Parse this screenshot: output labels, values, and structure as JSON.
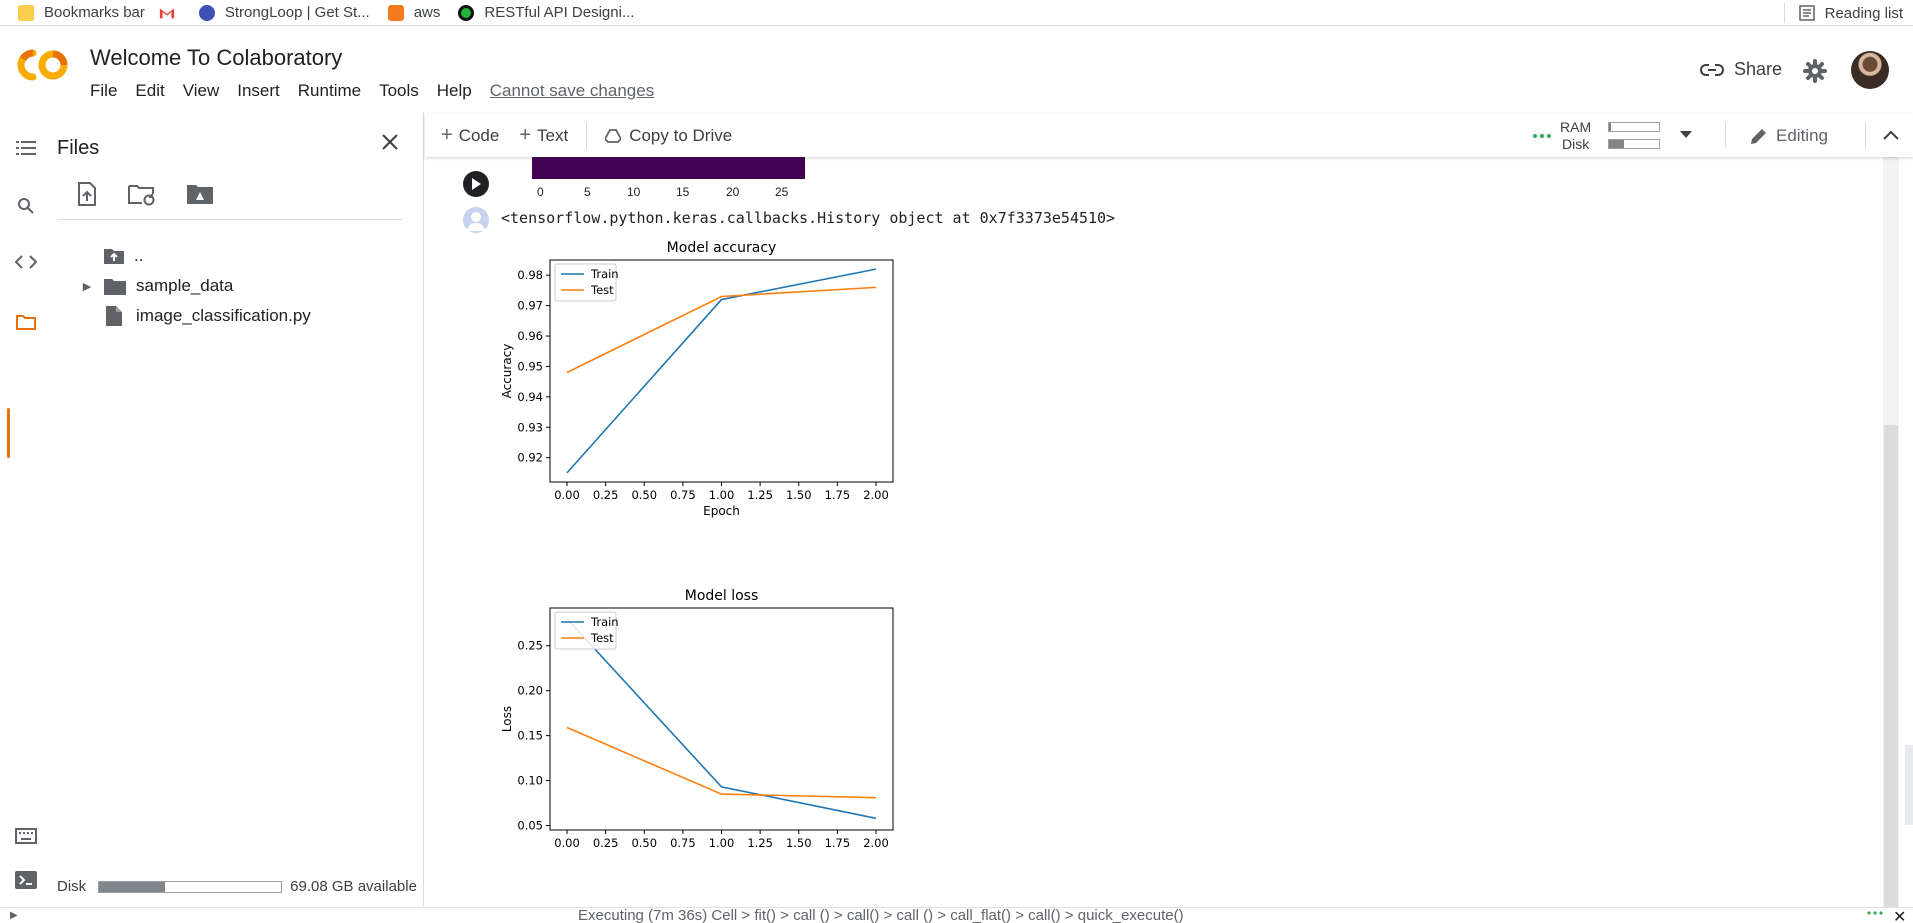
{
  "bookmarks": {
    "items": [
      {
        "label": "Bookmarks bar",
        "icon": "folder-icon",
        "color": "#f9ce4a"
      },
      {
        "label": "",
        "icon": "gmail-icon",
        "color": "#ea4335"
      },
      {
        "label": "StrongLoop | Get St...",
        "icon": "strongloop-icon",
        "color": "#3f51b5"
      },
      {
        "label": "aws",
        "icon": "aws-icon",
        "color": "#f47c20"
      },
      {
        "label": "RESTful API Designi...",
        "icon": "stopwatch-icon",
        "color": "#1eb53a"
      }
    ],
    "reading_list": "Reading list"
  },
  "header": {
    "title": "Welcome To Colaboratory",
    "menu": [
      "File",
      "Edit",
      "View",
      "Insert",
      "Runtime",
      "Tools",
      "Help"
    ],
    "warning": "Cannot save changes",
    "share_label": "Share",
    "accent": "#f9ab00"
  },
  "files": {
    "title": "Files",
    "tree": [
      {
        "label": "..",
        "icon": "folder-up-icon"
      },
      {
        "label": "sample_data",
        "icon": "folder-icon",
        "expandable": true
      },
      {
        "label": "image_classification.py",
        "icon": "file-icon"
      }
    ],
    "disk_label": "Disk",
    "disk_available": "69.08 GB available",
    "disk_used_fraction": 0.36
  },
  "toolbar": {
    "code_label": "Code",
    "text_label": "Text",
    "copy_label": "Copy to Drive",
    "ram_label": "RAM",
    "disk_label": "Disk",
    "ram_fraction": 0.04,
    "disk_fraction": 0.3,
    "editing_label": "Editing"
  },
  "cell": {
    "colorbar_ticks": [
      "0",
      "5",
      "10",
      "15",
      "20",
      "25"
    ],
    "output_text": "<tensorflow.python.keras.callbacks.History object at 0x7f3373e54510>"
  },
  "chart_data": [
    {
      "type": "line",
      "title": "Model accuracy",
      "xlabel": "Epoch",
      "ylabel": "Accuracy",
      "x": [
        0,
        1,
        2
      ],
      "xlim": [
        0.0,
        2.0
      ],
      "ylim": [
        0.912,
        0.985
      ],
      "xticks": [
        "0.00",
        "0.25",
        "0.50",
        "0.75",
        "1.00",
        "1.25",
        "1.50",
        "1.75",
        "2.00"
      ],
      "yticks": [
        "0.92",
        "0.93",
        "0.94",
        "0.95",
        "0.96",
        "0.97",
        "0.98"
      ],
      "legend": "top-left",
      "series": [
        {
          "name": "Train",
          "values": [
            0.915,
            0.972,
            0.982
          ],
          "color": "#1f77b4"
        },
        {
          "name": "Test",
          "values": [
            0.948,
            0.973,
            0.976
          ],
          "color": "#ff7f0e"
        }
      ]
    },
    {
      "type": "line",
      "title": "Model loss",
      "xlabel": "",
      "ylabel": "Loss",
      "x": [
        0,
        1,
        2
      ],
      "xlim": [
        0.0,
        2.0
      ],
      "ylim": [
        0.045,
        0.292
      ],
      "xticks": [
        "0.00",
        "0.25",
        "0.50",
        "0.75",
        "1.00",
        "1.25",
        "1.50",
        "1.75",
        "2.00"
      ],
      "yticks": [
        "0.05",
        "0.10",
        "0.15",
        "0.20",
        "0.25"
      ],
      "legend": "top-left",
      "series": [
        {
          "name": "Train",
          "values": [
            0.28,
            0.093,
            0.058
          ],
          "color": "#1f77b4"
        },
        {
          "name": "Test",
          "values": [
            0.159,
            0.085,
            0.081
          ],
          "color": "#ff7f0e"
        }
      ]
    }
  ],
  "status": {
    "text": "Executing (7m 36s)  Cell > fit() >    call    () >   call() >    call    () >   call_flat() > call() > quick_execute()"
  }
}
